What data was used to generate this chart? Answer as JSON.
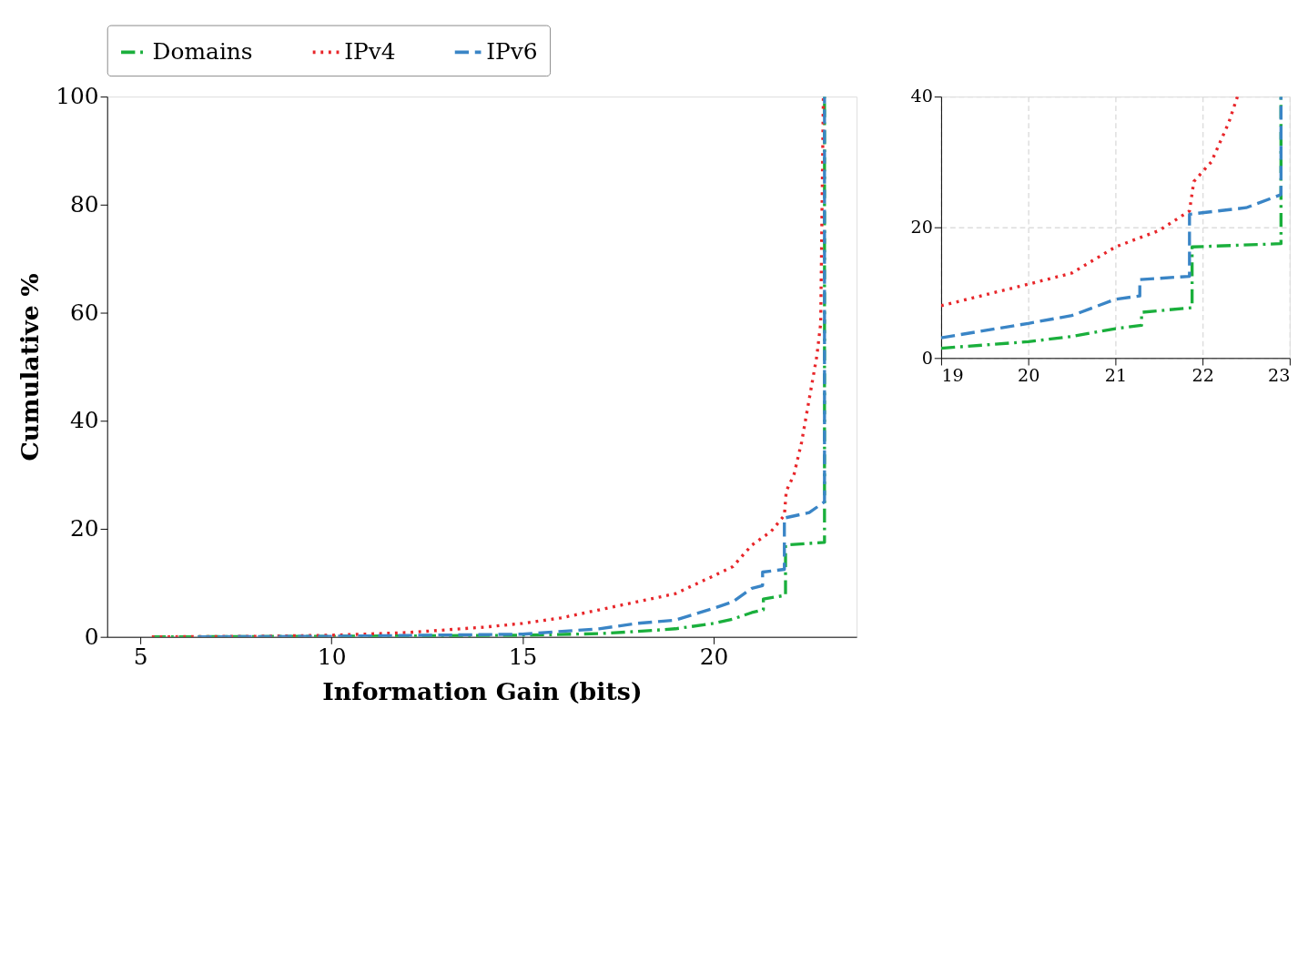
{
  "chart_data": [
    {
      "type": "line",
      "xlabel": "Information Gain (bits)",
      "ylabel": "Cumulative %",
      "xlim": [
        4.13,
        23.74
      ],
      "ylim": [
        0,
        100
      ],
      "xticks": [
        5,
        10,
        15,
        20
      ],
      "yticks": [
        0,
        20,
        40,
        60,
        80,
        100
      ],
      "grid": false,
      "legend": "top",
      "marker": "none",
      "series": [
        {
          "name": "Domains",
          "color": "#1aaf3c",
          "line_style": "dashdot",
          "x": [
            5.3,
            10,
            15,
            17,
            18,
            19,
            20,
            20.5,
            21,
            21.3,
            21.3,
            21.88,
            21.88,
            22.9,
            22.9
          ],
          "values": [
            0,
            0.1,
            0.3,
            0.6,
            1,
            1.5,
            2.5,
            3.3,
            4.5,
            5,
            7,
            7.7,
            17,
            17.5,
            100
          ]
        },
        {
          "name": "IPv4",
          "color": "#e8262a",
          "line_style": "dotted",
          "x": [
            5.3,
            8,
            10,
            12,
            14,
            15,
            16,
            17,
            18,
            19,
            20,
            20.5,
            21,
            21.5,
            21.85,
            21.9,
            22.1,
            22.3,
            22.5,
            22.7,
            22.8,
            22.87
          ],
          "values": [
            0,
            0.1,
            0.3,
            0.8,
            1.8,
            2.5,
            3.5,
            5,
            6.5,
            8,
            11.3,
            13,
            17,
            19.5,
            22.5,
            27,
            30,
            36,
            44,
            52,
            58,
            100
          ]
        },
        {
          "name": "IPv6",
          "color": "#3a85c6",
          "line_style": "dashed",
          "x": [
            6.5,
            10,
            15,
            17,
            18,
            19,
            20,
            20.5,
            21,
            21.28,
            21.28,
            21.85,
            21.85,
            22.5,
            22.9,
            22.9
          ],
          "values": [
            0,
            0.1,
            0.5,
            1.5,
            2.5,
            3.1,
            5.3,
            6.5,
            9,
            9.5,
            12,
            12.5,
            22,
            23,
            25,
            100
          ]
        }
      ]
    },
    {
      "type": "line",
      "xlim": [
        19,
        23
      ],
      "ylim": [
        0,
        40
      ],
      "xticks": [
        19,
        20,
        21,
        22,
        23
      ],
      "yticks": [
        0,
        20,
        40
      ],
      "grid": true,
      "legend": false,
      "marker": "none",
      "series": [
        {
          "color": "#1aaf3c",
          "line_style": "dashdot",
          "x": [
            19,
            20,
            20.5,
            21,
            21.3,
            21.3,
            21.88,
            21.88,
            22.9,
            22.9
          ],
          "values": [
            1.5,
            2.5,
            3.3,
            4.5,
            5,
            7,
            7.7,
            17,
            17.5,
            40
          ]
        },
        {
          "color": "#e8262a",
          "line_style": "dotted",
          "x": [
            19,
            20,
            20.5,
            21,
            21.5,
            21.85,
            21.9,
            22.1,
            22.3,
            22.4
          ],
          "values": [
            8,
            11.3,
            13,
            17,
            19.5,
            22.5,
            27,
            30,
            36,
            40
          ]
        },
        {
          "color": "#3a85c6",
          "line_style": "dashed",
          "x": [
            19,
            20,
            20.5,
            21,
            21.28,
            21.28,
            21.85,
            21.85,
            22.5,
            22.9,
            22.9
          ],
          "values": [
            3.1,
            5.3,
            6.5,
            9,
            9.5,
            12,
            12.5,
            22,
            23,
            25,
            40
          ]
        }
      ]
    }
  ]
}
